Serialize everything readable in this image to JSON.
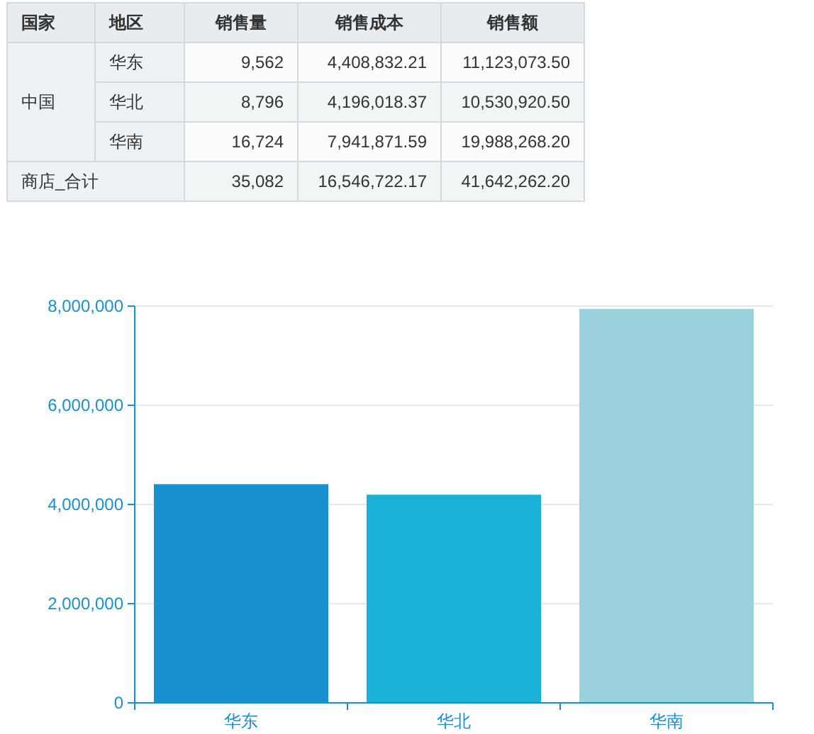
{
  "chart_data": [
    {
      "type": "other",
      "categories": [
        "国家",
        "地区",
        "销售量",
        "销售成本",
        "销售额"
      ],
      "cell_labels": [
        [
          "中国",
          "华东",
          "9,562",
          "4,408,832.21",
          "11,123,073.50"
        ],
        [
          null,
          "华北",
          "8,796",
          "4,196,018.37",
          "10,530,920.50"
        ],
        [
          null,
          "华南",
          "16,724",
          "7,941,871.59",
          "19,988,268.20"
        ],
        [
          "商店_合计",
          null,
          "35,082",
          "16,546,722.17",
          "41,642,262.20"
        ]
      ]
    },
    {
      "type": "bar",
      "categories": [
        "华东",
        "华北",
        "华南"
      ],
      "values": [
        4408832.21,
        4196018.37,
        7941871.59
      ],
      "colors": [
        "#1891d0",
        "#1bb1d6",
        "#9bd1dd"
      ],
      "ylim": [
        0,
        8000000
      ],
      "yticks": [
        {
          "value": 0,
          "label": "0"
        },
        {
          "value": 2000000,
          "label": "2,000,000"
        },
        {
          "value": 4000000,
          "label": "4,000,000"
        },
        {
          "value": 6000000,
          "label": "6,000,000"
        },
        {
          "value": 8000000,
          "label": "8,000,000"
        }
      ],
      "grid": "y"
    }
  ]
}
